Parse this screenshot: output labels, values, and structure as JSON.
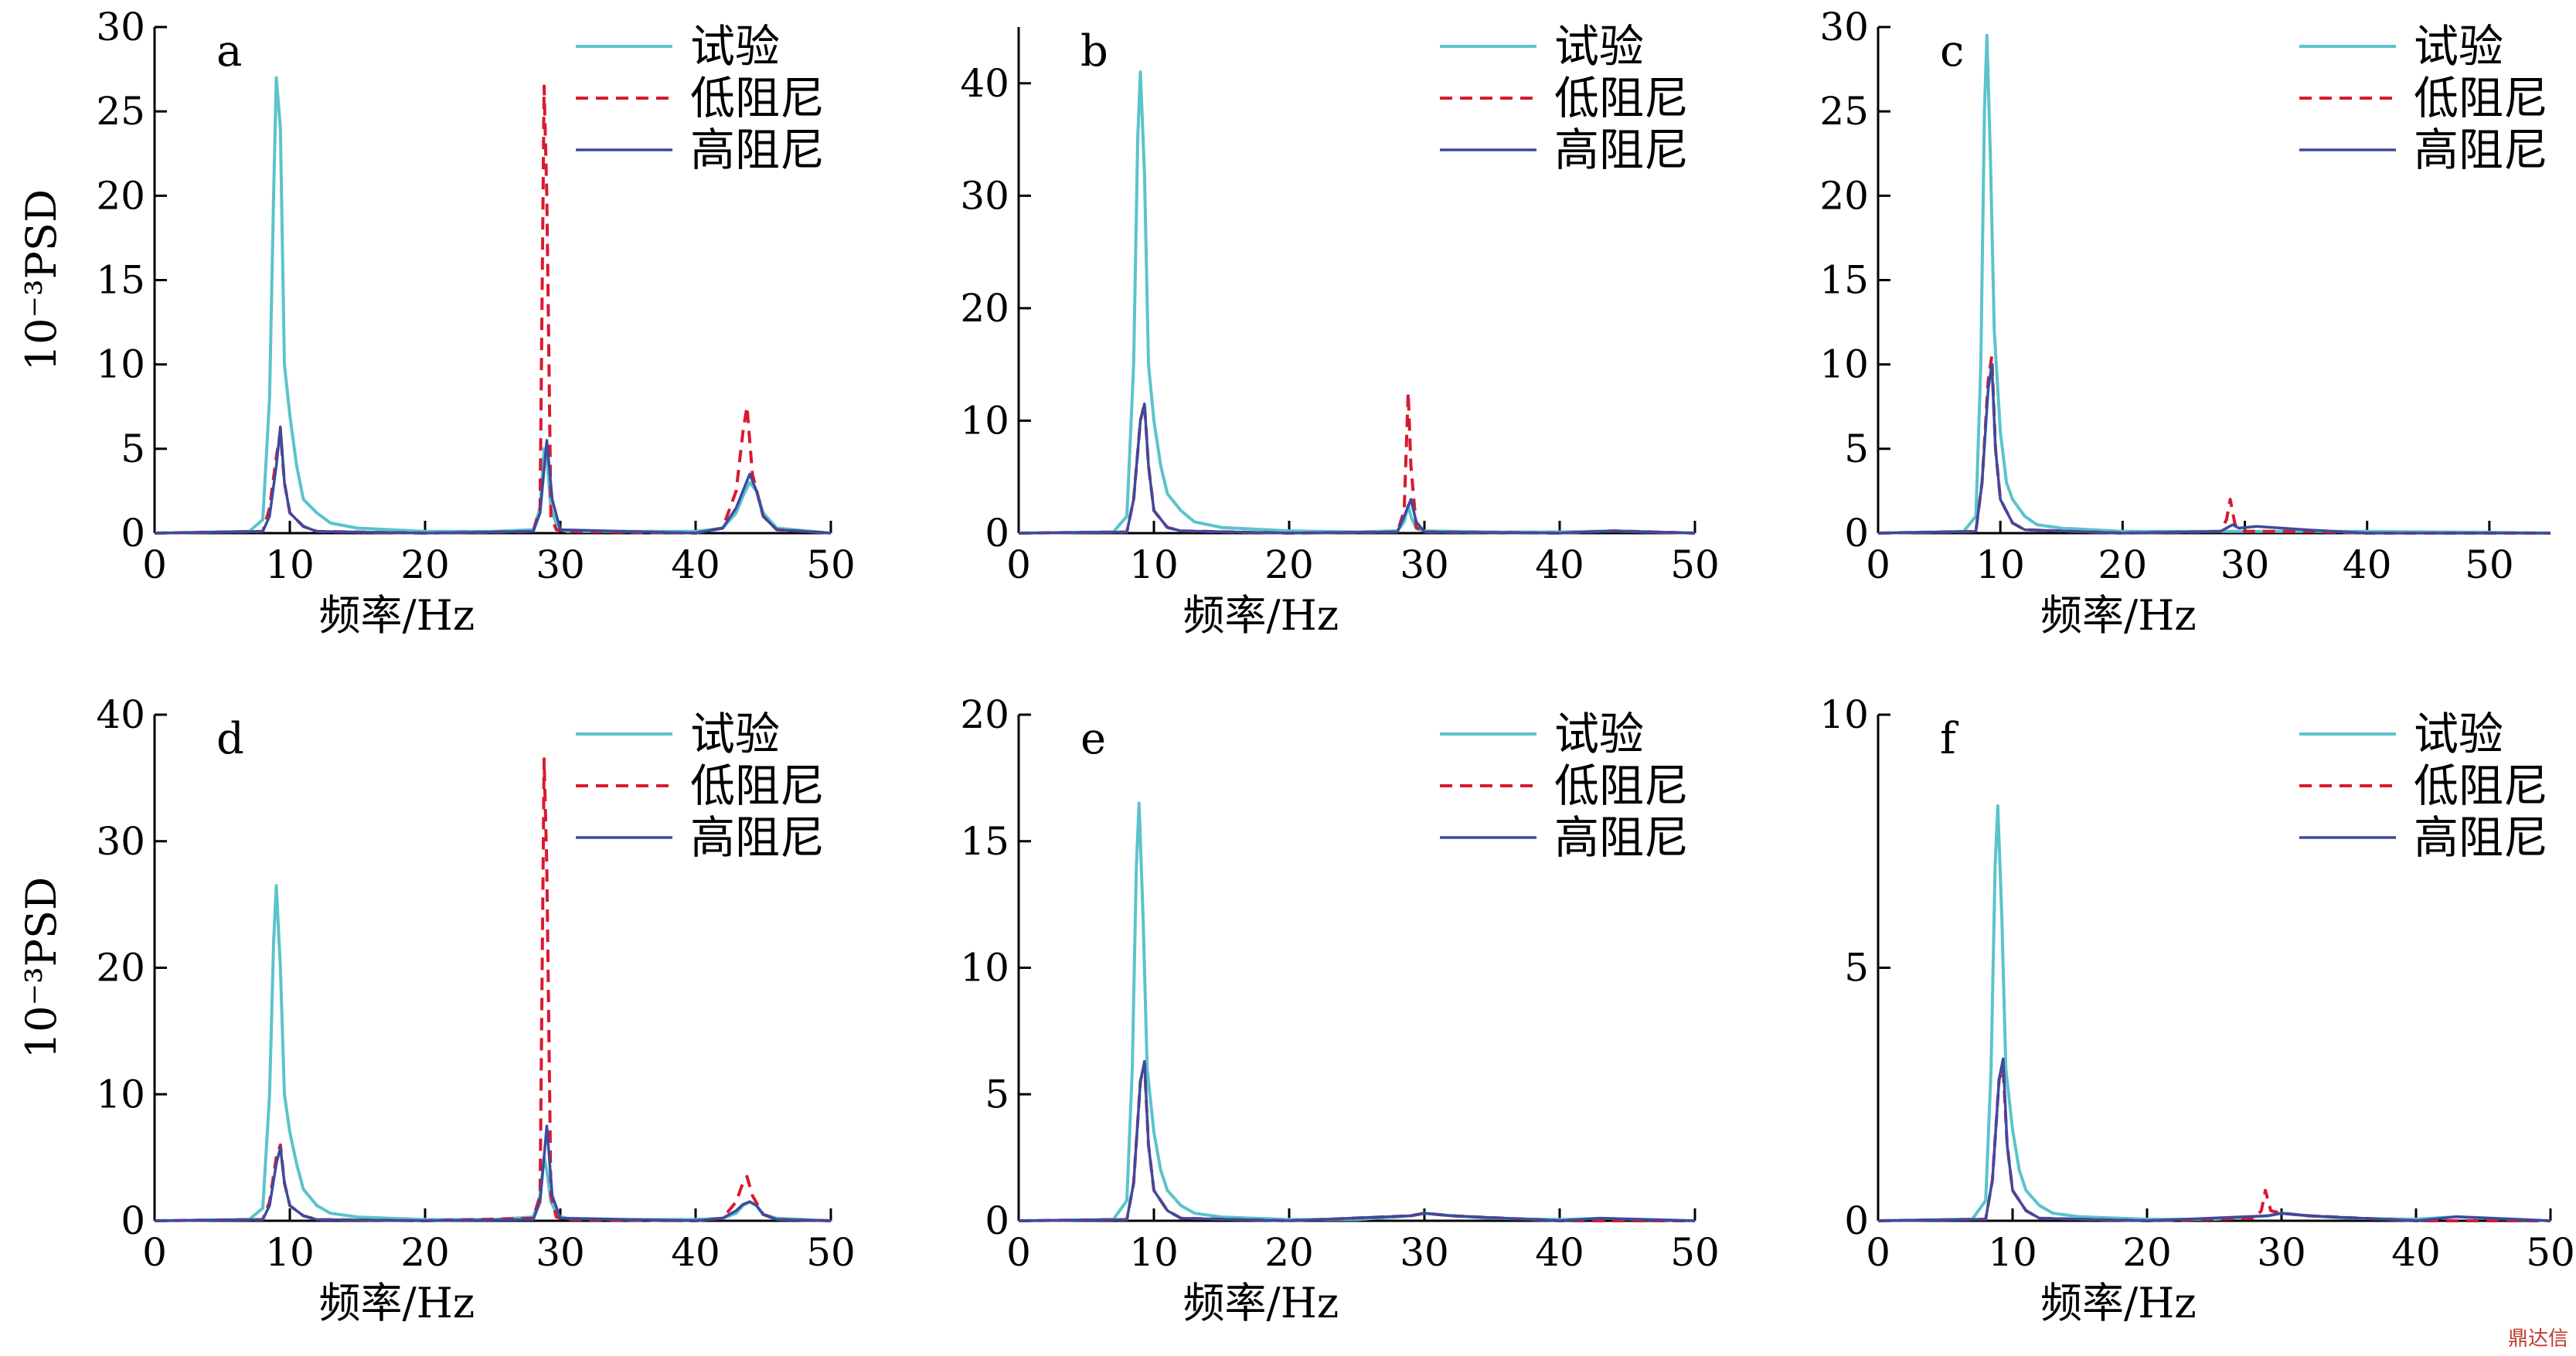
{
  "watermark": "鼎达信",
  "colors": {
    "experiment": "#5bc3cb",
    "low_damping": "#d9192f",
    "high_damping": "#3d4a9e",
    "axis": "#000000"
  },
  "chart_data": [
    {
      "type": "line",
      "panel": "a",
      "xlabel": "频率/Hz",
      "ylabel": "10⁻³PSD",
      "xlim": [
        0,
        50
      ],
      "ylim": [
        0,
        30
      ],
      "xticks": [
        "0",
        "10",
        "20",
        "30",
        "40",
        "50"
      ],
      "yticks": [
        "0",
        "5",
        "10",
        "15",
        "20",
        "25",
        "30"
      ],
      "legend": "top-right",
      "series": [
        {
          "name": "试验",
          "style": "solid",
          "x": [
            0,
            7,
            8,
            8.5,
            8.8,
            9,
            9.3,
            9.6,
            10,
            10.5,
            11,
            12,
            13,
            15,
            20,
            25,
            28,
            28.5,
            28.8,
            29,
            29.3,
            29.8,
            30.5,
            35,
            40,
            42,
            43,
            43.5,
            44,
            44.5,
            45,
            46,
            50
          ],
          "y": [
            0,
            0.1,
            0.8,
            8,
            20,
            27,
            24,
            10,
            7,
            4,
            2,
            1.2,
            0.6,
            0.3,
            0.1,
            0.1,
            0.2,
            1.5,
            5,
            4.5,
            1.5,
            0.3,
            0.1,
            0.1,
            0.1,
            0.3,
            1.2,
            2.2,
            3,
            2.5,
            1.2,
            0.3,
            0
          ]
        },
        {
          "name": "低阻尼",
          "style": "dashed",
          "x": [
            0,
            8,
            8.5,
            9,
            9.3,
            9.6,
            10,
            11,
            12,
            20,
            28,
            28.5,
            28.8,
            29,
            29.3,
            29.7,
            30.5,
            40,
            42,
            43,
            43.5,
            43.8,
            44.2,
            45,
            46,
            50
          ],
          "y": [
            0,
            0.1,
            1.5,
            4.5,
            6,
            3,
            1.2,
            0.4,
            0.1,
            0,
            0.1,
            1.5,
            26.5,
            20,
            1,
            0.2,
            0.1,
            0,
            0.3,
            2.5,
            6,
            7.5,
            3.5,
            1,
            0.2,
            0
          ]
        },
        {
          "name": "高阻尼",
          "style": "solid",
          "x": [
            0,
            8,
            8.5,
            9,
            9.3,
            9.6,
            10,
            11,
            12,
            20,
            28,
            28.5,
            29,
            29.4,
            30,
            40,
            42,
            43,
            43.5,
            44,
            44.5,
            45,
            46,
            50
          ],
          "y": [
            0,
            0.1,
            1,
            4,
            6.3,
            3,
            1.2,
            0.4,
            0.1,
            0,
            0.1,
            1.2,
            5.5,
            2,
            0.2,
            0,
            0.3,
            1.5,
            2.5,
            3.5,
            2.5,
            1,
            0.2,
            0
          ]
        }
      ]
    },
    {
      "type": "line",
      "panel": "b",
      "xlabel": "频率/Hz",
      "ylabel": "",
      "xlim": [
        0,
        50
      ],
      "ylim": [
        0,
        45
      ],
      "xticks": [
        "0",
        "10",
        "20",
        "30",
        "40",
        "50"
      ],
      "yticks": [
        "0",
        "10",
        "20",
        "30",
        "40"
      ],
      "legend": "top-right",
      "series": [
        {
          "name": "试验",
          "style": "solid",
          "x": [
            0,
            7,
            8,
            8.5,
            8.8,
            9,
            9.3,
            9.6,
            10,
            10.5,
            11,
            12,
            13,
            15,
            20,
            25,
            28,
            28.5,
            28.8,
            29,
            29.4,
            30,
            35,
            40,
            44,
            50
          ],
          "y": [
            0,
            0.1,
            1.5,
            15,
            35,
            41,
            32,
            15,
            10,
            6,
            3.5,
            2,
            1,
            0.5,
            0.2,
            0.1,
            0.2,
            1,
            2.5,
            1.5,
            0.4,
            0.2,
            0.1,
            0.1,
            0.2,
            0
          ]
        },
        {
          "name": "低阻尼",
          "style": "dashed",
          "x": [
            0,
            8,
            8.5,
            9,
            9.3,
            9.6,
            10,
            11,
            12,
            20,
            28,
            28.5,
            28.8,
            29,
            29.4,
            30,
            40,
            44,
            50
          ],
          "y": [
            0,
            0.1,
            3,
            10,
            11.5,
            6,
            2,
            0.5,
            0.2,
            0,
            0.1,
            2,
            12.5,
            6,
            0.5,
            0.1,
            0,
            0.2,
            0
          ]
        },
        {
          "name": "高阻尼",
          "style": "solid",
          "x": [
            0,
            8,
            8.5,
            9,
            9.3,
            9.6,
            10,
            11,
            12,
            20,
            28,
            28.5,
            29,
            29.4,
            30,
            40,
            44,
            50
          ],
          "y": [
            0,
            0.1,
            3,
            10,
            11.5,
            6,
            2,
            0.5,
            0.2,
            0,
            0.1,
            1.5,
            3,
            1,
            0.1,
            0,
            0.2,
            0
          ]
        }
      ]
    },
    {
      "type": "line",
      "panel": "c",
      "xlabel": "频率/Hz",
      "ylabel": "",
      "xlim": [
        0,
        55
      ],
      "ylim": [
        0,
        30
      ],
      "xticks": [
        "0",
        "10",
        "20",
        "30",
        "40",
        "50"
      ],
      "yticks": [
        "0",
        "5",
        "10",
        "15",
        "20",
        "25",
        "30"
      ],
      "legend": "top-right",
      "series": [
        {
          "name": "试验",
          "style": "solid",
          "x": [
            0,
            7,
            8,
            8.4,
            8.7,
            8.9,
            9.2,
            9.5,
            10,
            10.5,
            11,
            12,
            13,
            15,
            20,
            25,
            30,
            35,
            40,
            50,
            55
          ],
          "y": [
            0,
            0.1,
            1,
            10,
            25,
            29.5,
            22,
            12,
            6,
            3,
            2,
            1,
            0.5,
            0.3,
            0.1,
            0.1,
            0.1,
            0.1,
            0.1,
            0.05,
            0
          ]
        },
        {
          "name": "低阻尼",
          "style": "dashed",
          "x": [
            0,
            8,
            8.5,
            9,
            9.3,
            9.6,
            10,
            11,
            12,
            20,
            28,
            28.5,
            28.8,
            29.2,
            30,
            35,
            40,
            55
          ],
          "y": [
            0,
            0.1,
            3,
            9,
            10.5,
            5,
            2,
            0.6,
            0.2,
            0,
            0.1,
            0.8,
            2,
            0.5,
            0.1,
            0.1,
            0,
            0
          ]
        },
        {
          "name": "高阻尼",
          "style": "solid",
          "x": [
            0,
            8,
            8.5,
            9,
            9.3,
            9.6,
            10,
            11,
            12,
            20,
            28,
            29,
            29.5,
            31,
            35,
            40,
            55
          ],
          "y": [
            0,
            0.1,
            3,
            8.5,
            10,
            5,
            2,
            0.6,
            0.2,
            0,
            0.1,
            0.5,
            0.3,
            0.4,
            0.2,
            0,
            0
          ]
        }
      ]
    },
    {
      "type": "line",
      "panel": "d",
      "xlabel": "频率/Hz",
      "ylabel": "10⁻³PSD",
      "xlim": [
        0,
        50
      ],
      "ylim": [
        0,
        40
      ],
      "xticks": [
        "0",
        "10",
        "20",
        "30",
        "40",
        "50"
      ],
      "yticks": [
        "0",
        "10",
        "20",
        "30",
        "40"
      ],
      "legend": "top-right",
      "series": [
        {
          "name": "试验",
          "style": "solid",
          "x": [
            0,
            7,
            8,
            8.5,
            8.8,
            9,
            9.3,
            9.6,
            10,
            10.5,
            11,
            12,
            13,
            15,
            20,
            25,
            28,
            28.5,
            28.8,
            29,
            29.3,
            29.8,
            30.5,
            35,
            40,
            42,
            43,
            43.5,
            44,
            44.5,
            45,
            46,
            50
          ],
          "y": [
            0,
            0.1,
            1,
            10,
            22,
            26.5,
            20,
            10,
            7,
            4.5,
            2.5,
            1.2,
            0.6,
            0.3,
            0.1,
            0.1,
            0.3,
            2,
            5,
            4,
            1.5,
            0.4,
            0.2,
            0.1,
            0.1,
            0.2,
            0.6,
            1.2,
            1.5,
            1.2,
            0.5,
            0.2,
            0
          ]
        },
        {
          "name": "低阻尼",
          "style": "dashed",
          "x": [
            0,
            8,
            8.5,
            9,
            9.3,
            9.6,
            10,
            11,
            12,
            20,
            28,
            28.5,
            28.8,
            29,
            29.3,
            29.7,
            30.5,
            40,
            42,
            43,
            43.5,
            43.8,
            44.2,
            45,
            46,
            50
          ],
          "y": [
            0,
            0.1,
            1.5,
            5,
            6,
            3,
            1.2,
            0.4,
            0.1,
            0,
            0.2,
            2,
            36.5,
            28,
            2,
            0.3,
            0.1,
            0,
            0.2,
            1.5,
            3,
            3.5,
            2,
            0.5,
            0.1,
            0
          ]
        },
        {
          "name": "高阻尼",
          "style": "solid",
          "x": [
            0,
            8,
            8.5,
            9,
            9.3,
            9.6,
            10,
            11,
            12,
            20,
            28,
            28.5,
            29,
            29.4,
            30,
            40,
            42,
            43,
            43.5,
            44,
            44.5,
            45,
            46,
            50
          ],
          "y": [
            0,
            0.1,
            1.2,
            4.5,
            5.8,
            3,
            1.2,
            0.4,
            0.1,
            0,
            0.1,
            1.5,
            7.5,
            2,
            0.2,
            0,
            0.2,
            0.8,
            1.3,
            1.5,
            1.2,
            0.5,
            0.1,
            0
          ]
        }
      ]
    },
    {
      "type": "line",
      "panel": "e",
      "xlabel": "频率/Hz",
      "ylabel": "",
      "xlim": [
        0,
        50
      ],
      "ylim": [
        0,
        20
      ],
      "xticks": [
        "0",
        "10",
        "20",
        "30",
        "40",
        "50"
      ],
      "yticks": [
        "0",
        "5",
        "10",
        "15",
        "20"
      ],
      "legend": "top-right",
      "series": [
        {
          "name": "试验",
          "style": "solid",
          "x": [
            0,
            7,
            8,
            8.4,
            8.7,
            8.9,
            9.2,
            9.5,
            10,
            10.5,
            11,
            12,
            13,
            15,
            20,
            25,
            29,
            30,
            32,
            35,
            40,
            43,
            50
          ],
          "y": [
            0,
            0.05,
            0.8,
            6,
            14,
            16.5,
            12,
            6,
            3.5,
            2,
            1.2,
            0.6,
            0.3,
            0.15,
            0.05,
            0.05,
            0.2,
            0.3,
            0.2,
            0.1,
            0.05,
            0.1,
            0
          ]
        },
        {
          "name": "低阻尼",
          "style": "dashed",
          "x": [
            0,
            8,
            8.5,
            9,
            9.3,
            9.6,
            10,
            11,
            12,
            20,
            29,
            30,
            32,
            40,
            50
          ],
          "y": [
            0,
            0.05,
            1.5,
            5.5,
            6.2,
            3,
            1.2,
            0.4,
            0.1,
            0,
            0.2,
            0.3,
            0.2,
            0,
            0
          ]
        },
        {
          "name": "高阻尼",
          "style": "solid",
          "x": [
            0,
            8,
            8.5,
            9,
            9.3,
            9.6,
            10,
            11,
            12,
            20,
            29,
            30,
            32,
            40,
            43,
            50
          ],
          "y": [
            0,
            0.05,
            1.5,
            5.5,
            6.3,
            3,
            1.2,
            0.4,
            0.1,
            0,
            0.2,
            0.3,
            0.2,
            0,
            0.1,
            0
          ]
        }
      ]
    },
    {
      "type": "line",
      "panel": "f",
      "xlabel": "频率/Hz",
      "ylabel": "",
      "xlim": [
        0,
        50
      ],
      "ylim": [
        0,
        10
      ],
      "xticks": [
        "0",
        "10",
        "20",
        "30",
        "40",
        "50"
      ],
      "yticks": [
        "0",
        "5",
        "10"
      ],
      "legend": "top-right",
      "series": [
        {
          "name": "试验",
          "style": "solid",
          "x": [
            0,
            7,
            8,
            8.4,
            8.7,
            8.9,
            9.2,
            9.5,
            10,
            10.5,
            11,
            12,
            13,
            15,
            20,
            25,
            29,
            30,
            32,
            35,
            40,
            43,
            50
          ],
          "y": [
            0,
            0.03,
            0.4,
            3,
            7,
            8.2,
            6,
            3,
            1.8,
            1,
            0.6,
            0.3,
            0.15,
            0.08,
            0.03,
            0.03,
            0.1,
            0.15,
            0.1,
            0.05,
            0.03,
            0.08,
            0
          ]
        },
        {
          "name": "低阻尼",
          "style": "dashed",
          "x": [
            0,
            8,
            8.5,
            9,
            9.3,
            9.6,
            10,
            11,
            12,
            20,
            28,
            28.5,
            28.8,
            29.2,
            30,
            32,
            40,
            50
          ],
          "y": [
            0,
            0.03,
            0.8,
            2.8,
            3,
            1.5,
            0.6,
            0.2,
            0.05,
            0,
            0.05,
            0.2,
            0.6,
            0.2,
            0.15,
            0.1,
            0,
            0
          ]
        },
        {
          "name": "高阻尼",
          "style": "solid",
          "x": [
            0,
            8,
            8.5,
            9,
            9.3,
            9.6,
            10,
            11,
            12,
            20,
            29,
            30,
            32,
            40,
            43,
            50
          ],
          "y": [
            0,
            0.03,
            0.8,
            2.8,
            3.2,
            1.5,
            0.6,
            0.2,
            0.05,
            0,
            0.1,
            0.15,
            0.1,
            0,
            0.08,
            0
          ]
        }
      ]
    }
  ]
}
